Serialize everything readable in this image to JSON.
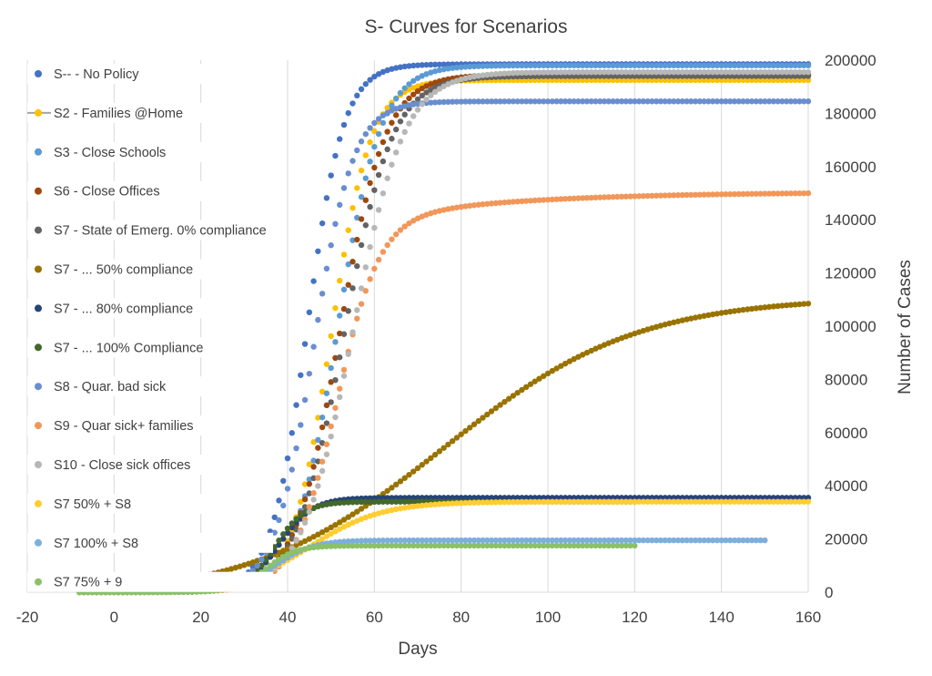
{
  "chart_data": {
    "type": "scatter",
    "title": "S- Curves for Scenarios",
    "xlabel": "Days",
    "ylabel": "Number of Cases",
    "xlim": [
      -20,
      160
    ],
    "ylim": [
      0,
      200000
    ],
    "x_ticks": [
      "-20",
      "0",
      "20",
      "40",
      "60",
      "80",
      "100",
      "120",
      "140",
      "160"
    ],
    "y_ticks": [
      "0",
      "20000",
      "40000",
      "60000",
      "80000",
      "100000",
      "120000",
      "140000",
      "160000",
      "180000",
      "200000"
    ],
    "grid": "vertical",
    "y_axis_side": "right",
    "legend_position": "left-inside",
    "series": [
      {
        "name": "S-- - No Policy",
        "color": "#4472C4",
        "model": {
          "start": -8,
          "end": 160,
          "L": 198500,
          "k": 0.24,
          "x0": 44.5
        }
      },
      {
        "name": "S2 - Families @Home",
        "color": "#FFC000",
        "marker_line": "#A5A5A5",
        "model": {
          "start": -8,
          "end": 160,
          "L": 192500,
          "k": 0.22,
          "x0": 50
        }
      },
      {
        "name": "S3 - Close Schools",
        "color": "#5B9BD5",
        "model": {
          "start": -8,
          "end": 160,
          "L": 198000,
          "k": 0.2,
          "x0": 51.5
        }
      },
      {
        "name": "S6 - Close Offices",
        "color": "#9E480E",
        "model": {
          "start": -8,
          "end": 160,
          "L": 194500,
          "k": 0.19,
          "x0": 52
        }
      },
      {
        "name": "S7 - State of Emerg. 0% compliance",
        "color": "#636363",
        "model": {
          "start": -8,
          "end": 160,
          "L": 194000,
          "k": 0.18,
          "x0": 53
        }
      },
      {
        "name": "S7 - ... 50% compliance",
        "color": "#997300",
        "model": {
          "start": -8,
          "end": 160,
          "L": 111000,
          "k": 0.045,
          "x0": 76,
          "curve": "slow"
        }
      },
      {
        "name": "S7 - ... 80% compliance",
        "color": "#264478",
        "model": {
          "start": -8,
          "end": 160,
          "L": 35500,
          "k": 0.26,
          "x0": 38
        }
      },
      {
        "name": "S7 - ... 100% Compliance",
        "color": "#43682B",
        "model": {
          "start": -8,
          "end": 120,
          "L": 34000,
          "k": 0.29,
          "x0": 37
        }
      },
      {
        "name": "S8 - Quar. bad sick",
        "color": "#698ED0",
        "model": {
          "start": -8,
          "end": 160,
          "L": 184500,
          "k": 0.22,
          "x0": 46
        }
      },
      {
        "name": "S9 - Quar sick+ families",
        "color": "#F1975A",
        "model": {
          "start": -8,
          "end": 160,
          "L": 150500,
          "k": 0.2,
          "x0": 51,
          "tail": "rising"
        }
      },
      {
        "name": "S10 - Close sick offices",
        "color": "#B7B7B7",
        "model": {
          "start": -8,
          "end": 160,
          "L": 195500,
          "k": 0.17,
          "x0": 55
        }
      },
      {
        "name": "S7 50% + S8",
        "color": "#FFCD33",
        "model": {
          "start": -8,
          "end": 160,
          "L": 34000,
          "k": 0.12,
          "x0": 45
        }
      },
      {
        "name": "S7 100% + S8",
        "color": "#7CAFDD",
        "model": {
          "start": -8,
          "end": 150,
          "L": 19500,
          "k": 0.23,
          "x0": 37
        }
      },
      {
        "name": "S7 75% + 9",
        "color": "#8BC168",
        "model": {
          "start": -8,
          "end": 120,
          "L": 17500,
          "k": 0.29,
          "x0": 35
        }
      }
    ]
  }
}
